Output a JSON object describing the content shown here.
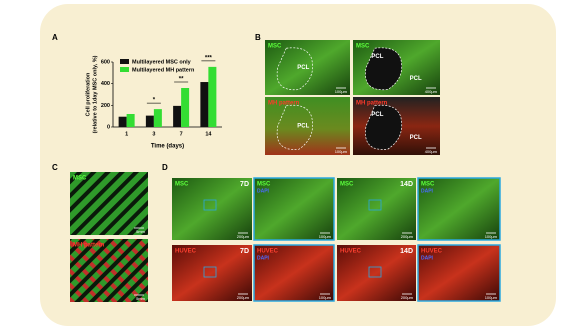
{
  "panel_letters": [
    "A",
    "B",
    "C",
    "D"
  ],
  "chart_data": {
    "type": "bar",
    "xlabel": "Time (days)",
    "ylabel": [
      "Cell proliferation",
      "(relative to 1day MSC only, %)"
    ],
    "categories": [
      "1",
      "3",
      "7",
      "14"
    ],
    "series": [
      {
        "name": "Multilayered MSC only",
        "color": "#111111",
        "values": [
          95,
          105,
          195,
          415
        ]
      },
      {
        "name": "Multilayered MH pattern",
        "color": "#33dd33",
        "values": [
          120,
          165,
          360,
          555
        ]
      }
    ],
    "annotations": [
      null,
      "*",
      "**",
      "***"
    ],
    "ylim": [
      0,
      600
    ],
    "yticks": [
      0,
      200,
      400,
      600
    ]
  },
  "panel_b": [
    {
      "label": "MSC",
      "regions": [
        "PCL"
      ],
      "scale": "100μm"
    },
    {
      "label": "MSC",
      "regions": [
        "PCL",
        "PCL"
      ],
      "scale": "400μm"
    },
    {
      "label": "MH pattern",
      "regions": [
        "PCL"
      ],
      "scale": "100μm"
    },
    {
      "label": "MH pattern",
      "regions": [
        "PCL",
        "PCL"
      ],
      "scale": "400μm"
    }
  ],
  "panel_c": [
    {
      "label": "MSC",
      "scale": "5mm"
    },
    {
      "label": "MH pattern",
      "scale": "5mm"
    }
  ],
  "panel_d": [
    {
      "label": "MSC",
      "tag": "7D",
      "scale": "200μm"
    },
    {
      "label": "MSC",
      "tag": "DAPI",
      "scale": "100μm"
    },
    {
      "label": "MSC",
      "tag": "14D",
      "scale": "200μm"
    },
    {
      "label": "MSC",
      "tag": "DAPI",
      "scale": "100μm"
    },
    {
      "label": "HUVEC",
      "tag": "7D",
      "scale": "200μm"
    },
    {
      "label": "HUVEC",
      "tag": "DAPI",
      "scale": "100μm"
    },
    {
      "label": "HUVEC",
      "tag": "14D",
      "scale": "200μm"
    },
    {
      "label": "HUVEC",
      "tag": "DAPI",
      "scale": "100μm"
    }
  ]
}
